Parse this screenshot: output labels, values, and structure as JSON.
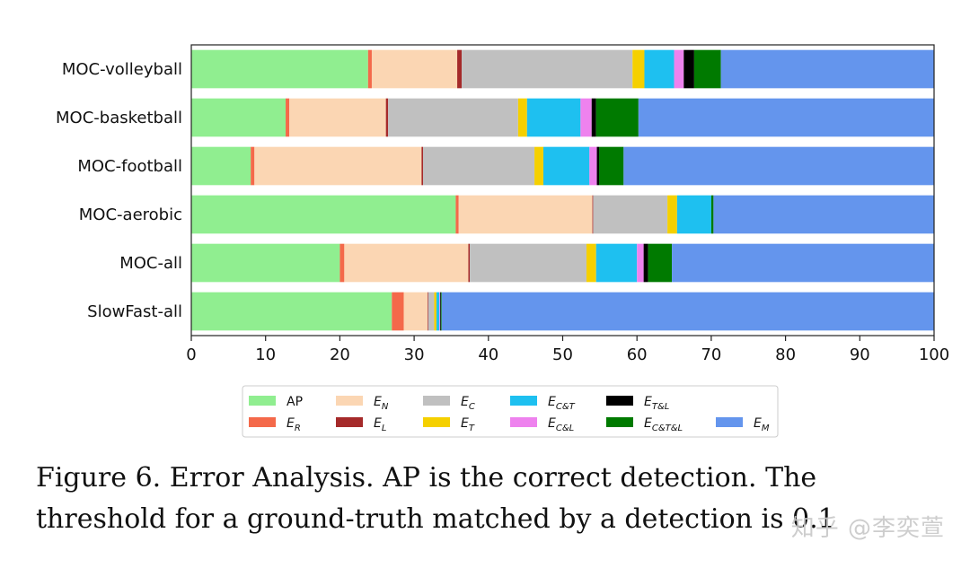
{
  "chart_data": {
    "type": "bar",
    "orientation": "horizontal",
    "stacked": true,
    "categories": [
      "MOC-volleyball",
      "MOC-basketball",
      "MOC-football",
      "MOC-aerobic",
      "MOC-all",
      "SlowFast-all"
    ],
    "xlim": [
      0,
      100
    ],
    "xticks": [
      "0",
      "10",
      "20",
      "30",
      "40",
      "50",
      "60",
      "70",
      "80",
      "90",
      "100"
    ],
    "legend_position": "bottom",
    "series": [
      {
        "key": "AP",
        "name": "AP",
        "base": "AP",
        "sub": "",
        "color": "#90ee90",
        "values": [
          23.8,
          12.7,
          8.0,
          35.6,
          20.0,
          27.0
        ]
      },
      {
        "key": "E_R",
        "name": "E_R",
        "base": "E",
        "sub": "R",
        "color": "#f4694a",
        "values": [
          0.5,
          0.5,
          0.5,
          0.4,
          0.6,
          1.6
        ]
      },
      {
        "key": "E_N",
        "name": "E_N",
        "base": "E",
        "sub": "N",
        "color": "#fbd6b3",
        "values": [
          11.5,
          13.0,
          22.5,
          18.0,
          16.7,
          3.2
        ]
      },
      {
        "key": "E_L",
        "name": "E_L",
        "base": "E",
        "sub": "L",
        "color": "#a52a2a",
        "values": [
          0.6,
          0.3,
          0.2,
          0.1,
          0.2,
          0.1
        ]
      },
      {
        "key": "E_C",
        "name": "E_C",
        "base": "E",
        "sub": "C",
        "color": "#c0c0c0",
        "values": [
          23.0,
          17.5,
          15.0,
          10.0,
          15.7,
          0.8
        ]
      },
      {
        "key": "E_T",
        "name": "E_T",
        "base": "E",
        "sub": "T",
        "color": "#f5d000",
        "values": [
          1.6,
          1.2,
          1.2,
          1.3,
          1.3,
          0.3
        ]
      },
      {
        "key": "E_CT",
        "name": "E_C&T",
        "base": "E",
        "sub": "C&T",
        "color": "#1ec0f0",
        "values": [
          4.0,
          7.2,
          6.2,
          4.6,
          5.5,
          0.4
        ]
      },
      {
        "key": "E_CL",
        "name": "E_C&L",
        "base": "E",
        "sub": "C&L",
        "color": "#ee82ee",
        "values": [
          1.3,
          1.5,
          1.0,
          0.0,
          0.9,
          0.1
        ]
      },
      {
        "key": "E_TL",
        "name": "E_T&L",
        "base": "E",
        "sub": "T&L",
        "color": "#000000",
        "values": [
          1.4,
          0.6,
          0.3,
          0.0,
          0.6,
          0.1
        ]
      },
      {
        "key": "E_CTL",
        "name": "E_C&T&L",
        "base": "E",
        "sub": "C&T&L",
        "color": "#007a00",
        "values": [
          3.6,
          5.7,
          3.3,
          0.3,
          3.2,
          0.1
        ]
      },
      {
        "key": "E_M",
        "name": "E_M",
        "base": "E",
        "sub": "M",
        "color": "#6495ed",
        "values": [
          28.7,
          39.8,
          41.8,
          29.7,
          35.3,
          66.3
        ]
      }
    ],
    "legend_order": [
      "AP",
      "E_R",
      "E_N",
      "E_L",
      "E_C",
      "E_T",
      "E_CT",
      "E_CL",
      "E_TL",
      "E_CTL",
      "",
      "E_M"
    ]
  },
  "caption": "Figure 6. Error Analysis. AP is the correct detection. The threshold for a ground-truth matched by a detection is 0.1",
  "watermark": "知乎 @李奕萱"
}
